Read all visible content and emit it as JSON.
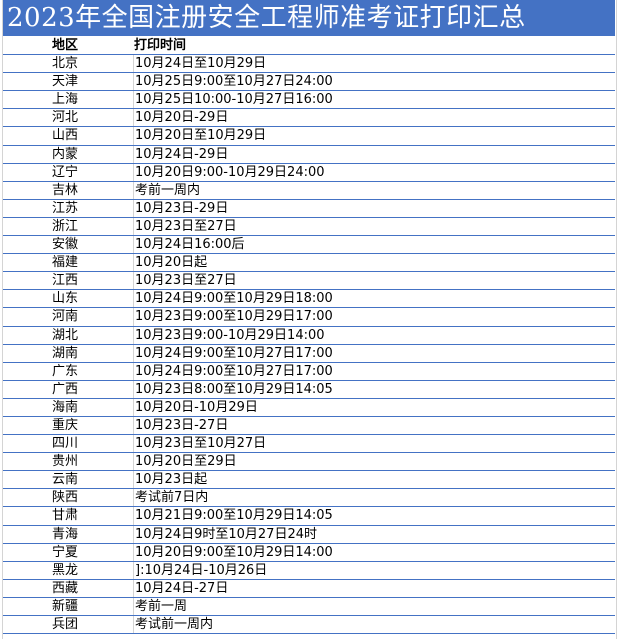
{
  "title": "2023年全国注册安全工程师准考证打印汇总",
  "colors": {
    "title_bg": "#4472c4",
    "row_border": "#4472c4"
  },
  "header": {
    "region": "地区",
    "time": "打印时间"
  },
  "rows": [
    {
      "region": "北京",
      "time": "10月24日至10月29日"
    },
    {
      "region": "天津",
      "time": "10月25日9:00至10月27日24:00"
    },
    {
      "region": "上海",
      "time": "10月25日10:00-10月27日16:00"
    },
    {
      "region": "河北",
      "time": "10月20日-29日"
    },
    {
      "region": "山西",
      "time": "10月20日至10月29日"
    },
    {
      "region": "内蒙",
      "time": "10月24日-29日"
    },
    {
      "region": "辽宁",
      "time": "10月20日9:00-10月29日24:00"
    },
    {
      "region": "吉林",
      "time": "考前一周内"
    },
    {
      "region": "江苏",
      "time": "10月23日-29日"
    },
    {
      "region": "浙江",
      "time": "10月23日至27日"
    },
    {
      "region": "安徽",
      "time": "10月24日16:00后"
    },
    {
      "region": "福建",
      "time": "10月20日起"
    },
    {
      "region": "江西",
      "time": "10月23日至27日"
    },
    {
      "region": "山东",
      "time": "10月24日9:00至10月29日18:00"
    },
    {
      "region": "河南",
      "time": "10月23日9:00至10月29日17:00"
    },
    {
      "region": "湖北",
      "time": "10月23日9:00-10月29日14:00"
    },
    {
      "region": "湖南",
      "time": "10月24日9:00至10月27日17:00"
    },
    {
      "region": "广东",
      "time": "10月24日9:00至10月27日17:00"
    },
    {
      "region": "广西",
      "time": "10月23日8:00至10月29日14:05"
    },
    {
      "region": "海南",
      "time": "10月20日-10月29日"
    },
    {
      "region": "重庆",
      "time": "10月23日-27日"
    },
    {
      "region": "四川",
      "time": "10月23日至10月27日"
    },
    {
      "region": "贵州",
      "time": "10月20日至29日"
    },
    {
      "region": "云南",
      "time": "10月23日起"
    },
    {
      "region": "陕西",
      "time": "考试前7日内"
    },
    {
      "region": "甘肃",
      "time": "10月21日9:00至10月29日14:05"
    },
    {
      "region": "青海",
      "time": "10月24日9时至10月27日24时"
    },
    {
      "region": "宁夏",
      "time": "10月20日9:00至10月29日14:00"
    },
    {
      "region": "黑龙",
      "time": "]:10月24日-10月26日"
    },
    {
      "region": "西藏",
      "time": "10月24日-27日"
    },
    {
      "region": "新疆",
      "time": "考前一周"
    },
    {
      "region": "兵团",
      "time": "考试前一周内"
    }
  ]
}
